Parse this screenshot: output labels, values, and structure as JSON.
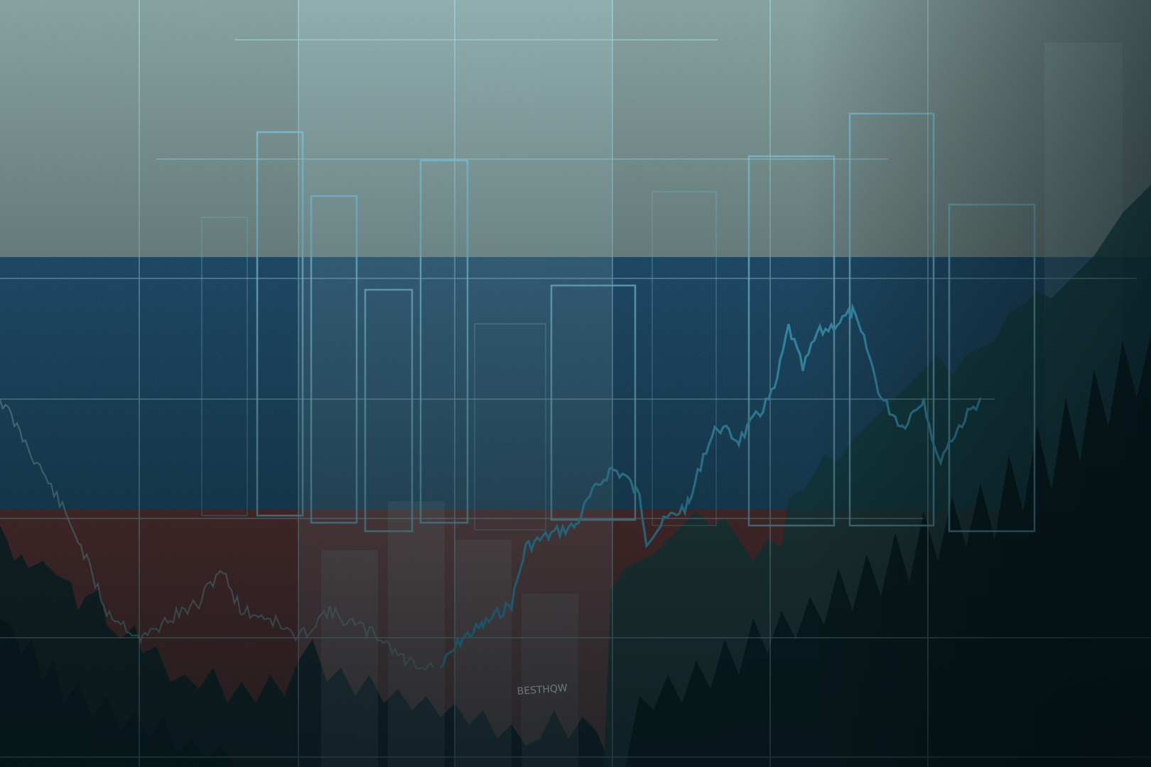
{
  "image": {
    "subject": "",
    "flag_stripes": [
      {
        "name": "white",
        "color": "#7e9e9b"
      },
      {
        "name": "blue",
        "color": "#10507a"
      },
      {
        "name": "red",
        "color": "#6e2b2a"
      }
    ],
    "palette": {
      "grid": "#9fdcf0",
      "line_main": "#43b8e6",
      "line_faint": "#8fc4cc",
      "bars_outline": "#7fd3ef",
      "area_dark": "#0f3a3e",
      "area_teal": "#1e5b5c"
    },
    "watermark": "BESTHQW"
  }
}
